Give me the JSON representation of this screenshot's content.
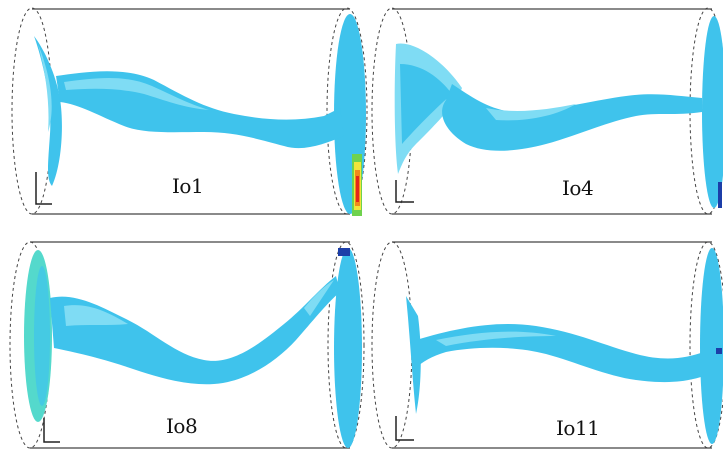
{
  "figure": {
    "panels": [
      {
        "label": "Io1"
      },
      {
        "label": "Io4"
      },
      {
        "label": "Io8"
      },
      {
        "label": "Io11"
      }
    ],
    "colors": {
      "tube_outline": "#444444",
      "jet_main": "#3fc3ec",
      "jet_light": "#7fdcf4",
      "jet_pale": "#b8ecf8",
      "jet_cyan_green": "#54d9cc",
      "deep_blue": "#1c3ea8",
      "hot_red": "#e2261b",
      "hot_orange": "#f08a1c",
      "hot_yellow": "#f3e43a",
      "hot_green": "#6fd24e"
    }
  }
}
